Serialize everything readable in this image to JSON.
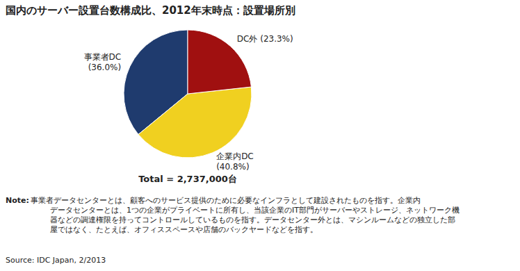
{
  "chart_data": {
    "type": "pie",
    "title": "国内のサーバー設置台数構成比、2012年末時点：設置場所別",
    "categories": [
      "事業者DC\n(36.0%)",
      "企業内DC\n(40.8%)",
      "DC外 (23.3%)"
    ],
    "values": [
      36.0,
      40.8,
      23.3
    ],
    "colors": [
      "#1f3b6e",
      "#f0d020",
      "#a01010"
    ],
    "annotations": [
      "Total = 2,737,000台",
      "Note: ",
      "事業者データセンターとは、顧客へのサービス提供のために必要なインフラとして建設されたものを指す。企業内\n        データセンターとは、1つの企業がプライベートに所有し、当該企業のIT部門がサーバーやストレージ、ネットワーク機\n        器などの調達権限を持ってコントロールしているものを指す。データセンター外とは、マシンルームなどの独立した部\n        屋ではなく、たとえば、オフィススペースや店舗のバックヤードなどを指す。",
      "Source: IDC Japan, 2/2013"
    ]
  }
}
